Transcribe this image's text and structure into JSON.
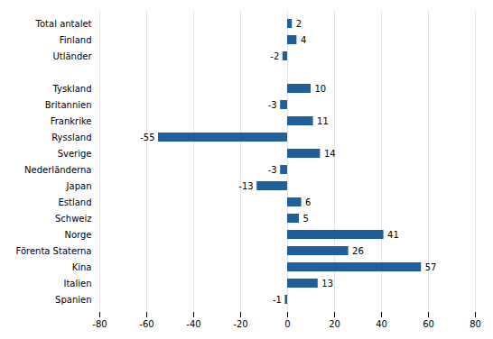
{
  "chart_data": {
    "type": "bar",
    "orientation": "horizontal",
    "categories": [
      "Total antalet",
      "Finland",
      "Utländer",
      null,
      "Tyskland",
      "Britannien",
      "Frankrike",
      "Ryssland",
      "Sverige",
      "Nederländerna",
      "Japan",
      "Estland",
      "Schweiz",
      "Norge",
      "Förenta Staterna",
      "Kina",
      "Italien",
      "Spanien"
    ],
    "values": [
      2,
      4,
      -2,
      null,
      10,
      -3,
      11,
      -55,
      14,
      -3,
      -13,
      6,
      5,
      41,
      26,
      57,
      13,
      -1
    ],
    "color": "#1f5f9e",
    "xlim": [
      -80,
      80
    ],
    "xticks": [
      -80,
      -60,
      -40,
      -20,
      0,
      20,
      40,
      60,
      80
    ],
    "grid": true,
    "data_labels": true
  }
}
